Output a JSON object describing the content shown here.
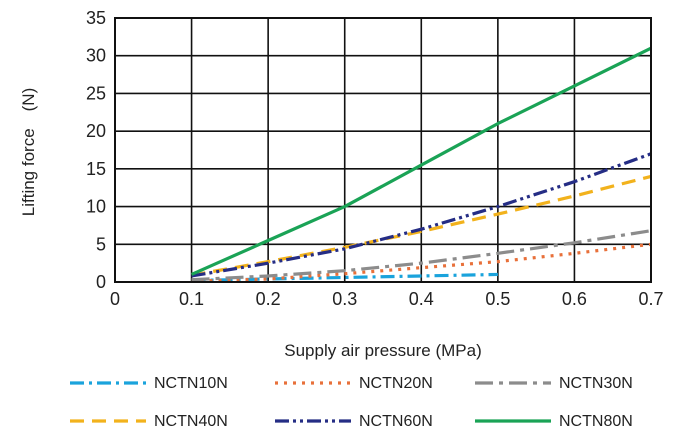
{
  "chart_data": {
    "type": "line",
    "xlabel": "Supply air pressure (MPa)",
    "ylabel": "Lifting force (N)",
    "xlim": [
      0,
      0.7
    ],
    "ylim": [
      0,
      35
    ],
    "x_ticks": [
      "0",
      "0.1",
      "0.2",
      "0.3",
      "0.4",
      "0.5",
      "0.6",
      "0.7"
    ],
    "y_ticks": [
      "0",
      "5",
      "10",
      "15",
      "20",
      "25",
      "30",
      "35"
    ],
    "grid": true,
    "legend_position": "bottom",
    "series": [
      {
        "name": "NCTN10N",
        "color": "#1aa3dc",
        "dash": "dash-dot",
        "x": [
          0.1,
          0.2,
          0.3,
          0.4,
          0.5
        ],
        "y": [
          0.2,
          0.4,
          0.6,
          0.8,
          1.0
        ]
      },
      {
        "name": "NCTN20N",
        "color": "#e8703a",
        "dash": "dot",
        "x": [
          0.1,
          0.2,
          0.3,
          0.4,
          0.5,
          0.6,
          0.7
        ],
        "y": [
          0.1,
          0.4,
          1.1,
          1.9,
          2.7,
          3.8,
          5.0
        ]
      },
      {
        "name": "NCTN30N",
        "color": "#8c8c8c",
        "dash": "long-dash-dot",
        "x": [
          0.1,
          0.2,
          0.3,
          0.4,
          0.5,
          0.6,
          0.7
        ],
        "y": [
          0.3,
          0.8,
          1.5,
          2.5,
          3.8,
          5.2,
          6.8
        ]
      },
      {
        "name": "NCTN40N",
        "color": "#f2b21c",
        "dash": "dash",
        "x": [
          0.1,
          0.2,
          0.3,
          0.4,
          0.5,
          0.6,
          0.7
        ],
        "y": [
          0.9,
          2.7,
          4.6,
          6.7,
          9.0,
          11.4,
          14.0
        ]
      },
      {
        "name": "NCTN60N",
        "color": "#252d85",
        "dash": "dash-dot-dot",
        "x": [
          0.1,
          0.2,
          0.3,
          0.4,
          0.5,
          0.6,
          0.7
        ],
        "y": [
          0.8,
          2.5,
          4.4,
          7.0,
          10.0,
          13.3,
          17.0
        ]
      },
      {
        "name": "NCTN80N",
        "color": "#1aa356",
        "dash": "solid",
        "x": [
          0.1,
          0.2,
          0.3,
          0.4,
          0.5,
          0.6,
          0.7
        ],
        "y": [
          1.0,
          5.5,
          10.0,
          15.5,
          21.0,
          26.0,
          31.0
        ]
      }
    ]
  }
}
